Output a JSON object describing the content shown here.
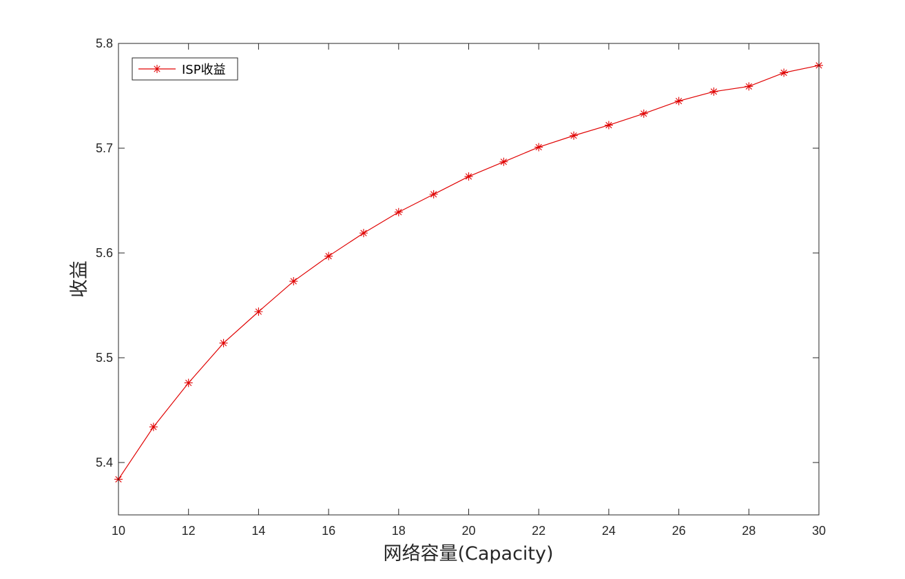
{
  "chart_data": {
    "type": "line",
    "title": "",
    "xlabel": "网络容量(Capacity)",
    "ylabel": "收益",
    "xlim": [
      10,
      30
    ],
    "ylim": [
      5.35,
      5.8
    ],
    "xticks": [
      10,
      12,
      14,
      16,
      18,
      20,
      22,
      24,
      26,
      28,
      30
    ],
    "yticks": [
      5.4,
      5.5,
      5.6,
      5.7,
      5.8
    ],
    "xtick_labels": [
      "10",
      "12",
      "14",
      "16",
      "18",
      "20",
      "22",
      "24",
      "26",
      "28",
      "30"
    ],
    "ytick_labels": [
      "5.4",
      "5.5",
      "5.6",
      "5.7",
      "5.8"
    ],
    "grid": false,
    "legend_position": "top-left",
    "series": [
      {
        "name": "ISP收益",
        "color": "#e00000",
        "marker": "asterisk",
        "x": [
          10,
          11,
          12,
          13,
          14,
          15,
          16,
          17,
          18,
          19,
          20,
          21,
          22,
          23,
          24,
          25,
          26,
          27,
          28,
          29,
          30
        ],
        "y": [
          5.384,
          5.434,
          5.476,
          5.514,
          5.544,
          5.573,
          5.597,
          5.619,
          5.639,
          5.656,
          5.673,
          5.687,
          5.701,
          5.712,
          5.722,
          5.733,
          5.745,
          5.754,
          5.759,
          5.772,
          5.779
        ]
      }
    ]
  }
}
